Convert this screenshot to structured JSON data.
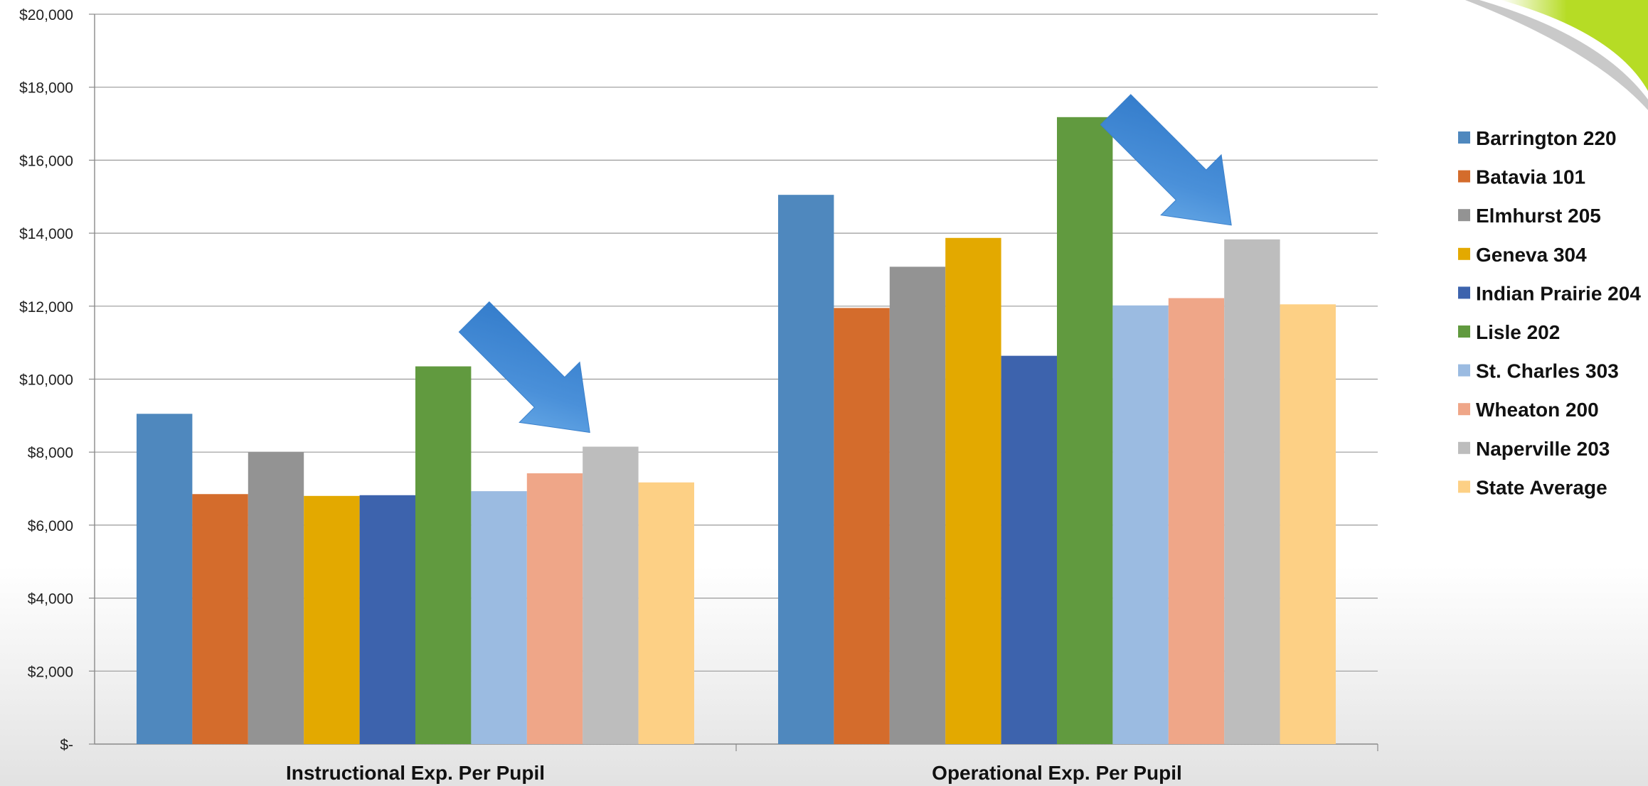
{
  "colors": {
    "swoosh_green": "#b6dc25",
    "swoosh_gray": "#c9c9c9",
    "arrow_blue": "#4a90d9"
  },
  "chart_data": {
    "type": "bar",
    "categories": [
      "Instructional Exp. Per Pupil",
      "Operational Exp. Per Pupil"
    ],
    "ylim": [
      0,
      20000
    ],
    "y_ticks": [
      {
        "value": 0,
        "label": "$-"
      },
      {
        "value": 2000,
        "label": "$2,000"
      },
      {
        "value": 4000,
        "label": "$4,000"
      },
      {
        "value": 6000,
        "label": "$6,000"
      },
      {
        "value": 8000,
        "label": "$8,000"
      },
      {
        "value": 10000,
        "label": "$10,000"
      },
      {
        "value": 12000,
        "label": "$12,000"
      },
      {
        "value": 14000,
        "label": "$14,000"
      },
      {
        "value": 16000,
        "label": "$16,000"
      },
      {
        "value": 18000,
        "label": "$18,000"
      },
      {
        "value": 20000,
        "label": "$20,000"
      }
    ],
    "grid": true,
    "legend_position": "right",
    "series": [
      {
        "name": "Barrington 220",
        "color": "#4f88be",
        "values": [
          9050,
          15050
        ]
      },
      {
        "name": "Batavia 101",
        "color": "#d46c2c",
        "values": [
          6850,
          11950
        ]
      },
      {
        "name": "Elmhurst 205",
        "color": "#939393",
        "values": [
          8000,
          13080
        ]
      },
      {
        "name": "Geneva 304",
        "color": "#e3a900",
        "values": [
          6800,
          13870
        ]
      },
      {
        "name": "Indian Prairie 204",
        "color": "#3d63ad",
        "values": [
          6820,
          10640
        ]
      },
      {
        "name": "Lisle 202",
        "color": "#619a3f",
        "values": [
          10350,
          17180
        ]
      },
      {
        "name": "St. Charles 303",
        "color": "#9bbbe1",
        "values": [
          6930,
          12020
        ]
      },
      {
        "name": "Wheaton 200",
        "color": "#efa688",
        "values": [
          7420,
          12220
        ]
      },
      {
        "name": "Naperville 203",
        "color": "#bdbdbd",
        "values": [
          8150,
          13830
        ]
      },
      {
        "name": "State Average",
        "color": "#fdd085",
        "values": [
          7170,
          12050
        ]
      }
    ],
    "annotations": [
      {
        "type": "arrow",
        "target_category": "Instructional Exp. Per Pupil",
        "target_series": "Naperville 203"
      },
      {
        "type": "arrow",
        "target_category": "Operational Exp. Per Pupil",
        "target_series": "Naperville 203"
      }
    ]
  }
}
